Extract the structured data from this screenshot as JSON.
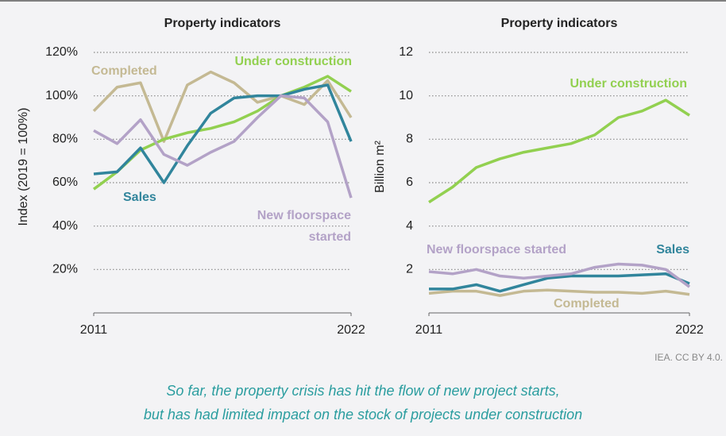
{
  "chart_data": [
    {
      "type": "line",
      "title": "Property indicators",
      "y_label": "Index (2019 = 100%)",
      "x": [
        2011,
        2012,
        2013,
        2014,
        2015,
        2016,
        2017,
        2018,
        2019,
        2020,
        2021,
        2022
      ],
      "xlim": [
        2011,
        2022
      ],
      "xticks": [
        2011,
        2022
      ],
      "ylim": [
        0,
        120
      ],
      "yticks": [
        {
          "value": 20,
          "label": "20%"
        },
        {
          "value": 40,
          "label": "40%"
        },
        {
          "value": 60,
          "label": "60%"
        },
        {
          "value": 80,
          "label": "80%"
        },
        {
          "value": 100,
          "label": "100%"
        },
        {
          "value": 120,
          "label": "120%"
        }
      ],
      "grid": true,
      "series": [
        {
          "name": "Completed",
          "color": "#c4b993",
          "values": [
            93,
            104,
            106,
            79,
            105,
            111,
            106,
            97,
            100,
            96,
            107,
            90
          ]
        },
        {
          "name": "Under construction",
          "color": "#92d050",
          "values": [
            57,
            65,
            75,
            80,
            83,
            85,
            88,
            93,
            100,
            104,
            109,
            102
          ]
        },
        {
          "name": "Sales",
          "color": "#31859c",
          "values": [
            64,
            65,
            76,
            60,
            77,
            92,
            99,
            100,
            100,
            103,
            105,
            79
          ]
        },
        {
          "name": "New floorspace started",
          "color": "#b3a2c7",
          "values": [
            84,
            78,
            89,
            73,
            68,
            74,
            79,
            90,
            100,
            99,
            88,
            53
          ]
        }
      ]
    },
    {
      "type": "line",
      "title": "Property indicators",
      "y_label": "Billion m²",
      "x": [
        2011,
        2012,
        2013,
        2014,
        2015,
        2016,
        2017,
        2018,
        2019,
        2020,
        2021,
        2022
      ],
      "xlim": [
        2011,
        2022
      ],
      "xticks": [
        2011,
        2022
      ],
      "ylim": [
        0,
        12
      ],
      "yticks": [
        2,
        4,
        6,
        8,
        10,
        12
      ],
      "grid": true,
      "series": [
        {
          "name": "Completed",
          "color": "#c4b993",
          "values": [
            0.9,
            1.0,
            1.0,
            0.8,
            1.0,
            1.05,
            1.0,
            0.95,
            0.95,
            0.9,
            1.0,
            0.85
          ]
        },
        {
          "name": "Under construction",
          "color": "#92d050",
          "values": [
            5.1,
            5.8,
            6.7,
            7.1,
            7.4,
            7.6,
            7.8,
            8.2,
            9.0,
            9.3,
            9.8,
            9.1
          ]
        },
        {
          "name": "Sales",
          "color": "#31859c",
          "values": [
            1.1,
            1.1,
            1.3,
            1.0,
            1.3,
            1.6,
            1.7,
            1.7,
            1.7,
            1.75,
            1.8,
            1.35
          ]
        },
        {
          "name": "New floorspace started",
          "color": "#b3a2c7",
          "values": [
            1.9,
            1.8,
            2.0,
            1.7,
            1.6,
            1.7,
            1.8,
            2.1,
            2.25,
            2.2,
            2.0,
            1.2
          ]
        }
      ]
    }
  ],
  "source": "IEA. CC BY 4.0.",
  "caption": [
    "So far, the property crisis has hit the flow of new project starts,",
    "but has had limited impact on the stock of projects under construction"
  ]
}
